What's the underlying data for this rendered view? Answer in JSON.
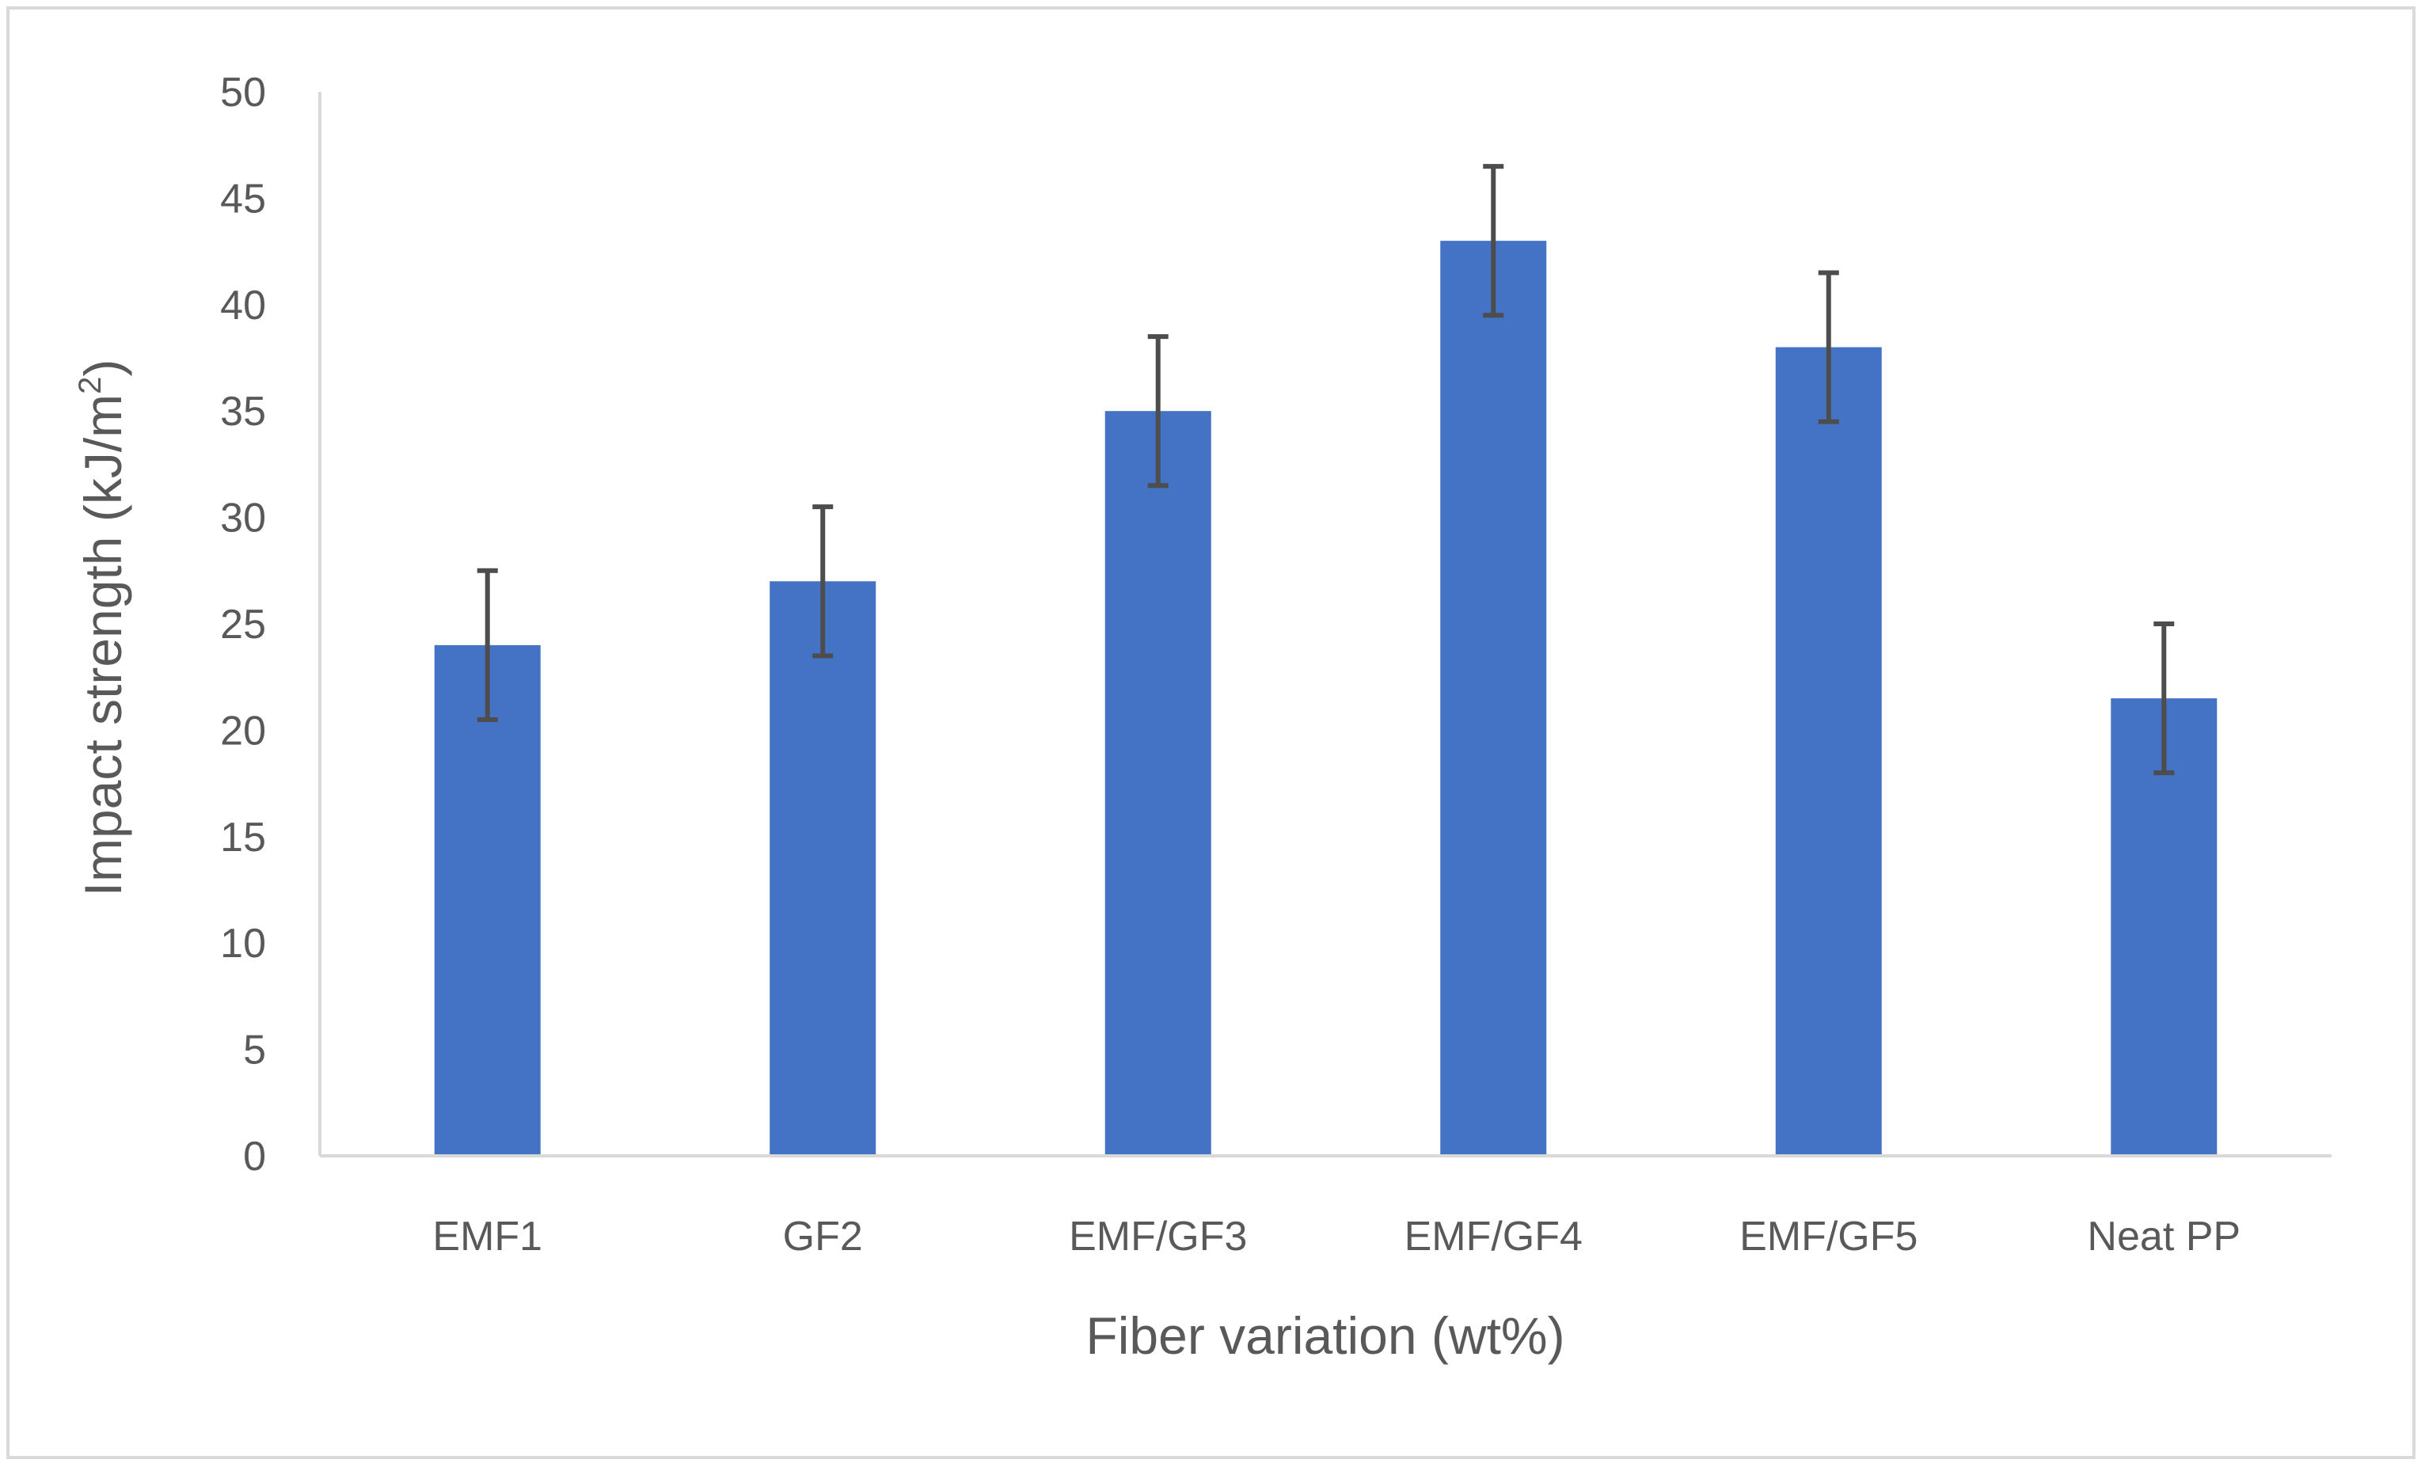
{
  "chart_data": {
    "type": "bar",
    "title": "",
    "xlabel": "Fiber variation (wt%)",
    "ylabel": "Impact strength (kJ/m",
    "ylabel_superscript": "2",
    "ylabel_suffix": ")",
    "categories": [
      "EMF1",
      "GF2",
      "EMF/GF3",
      "EMF/GF4",
      "EMF/GF5",
      "Neat PP"
    ],
    "values": [
      24,
      27,
      35,
      43,
      38,
      21.5
    ],
    "error": [
      3.5,
      3.5,
      3.5,
      3.5,
      3.5,
      3.5
    ],
    "ylim": [
      0,
      50
    ],
    "yticks": [
      "0",
      "5",
      "10",
      "15",
      "20",
      "25",
      "30",
      "35",
      "40",
      "45",
      "50"
    ],
    "grid": false,
    "legend": "none",
    "bar_color": "#4472c4",
    "error_bar_color": "#4d4d4d",
    "axis_color": "#d9d9d9"
  }
}
